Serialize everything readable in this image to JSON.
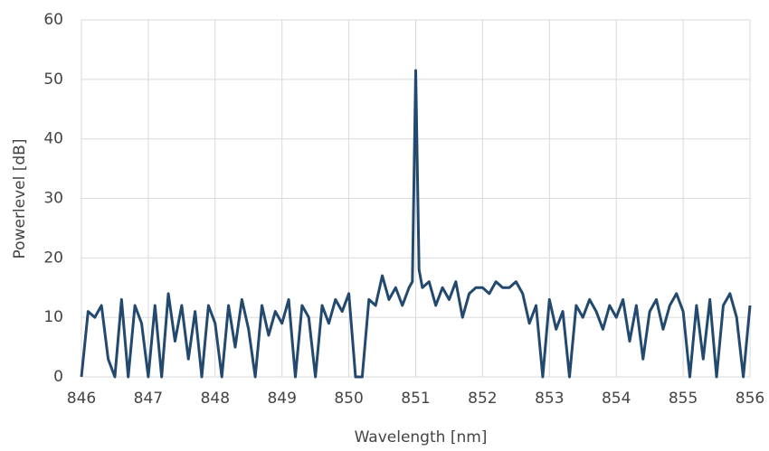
{
  "chart_data": {
    "type": "line",
    "x_label": "Wavelength [nm]",
    "y_label": "Powerlevel [dB]",
    "x": [
      846.0,
      846.1,
      846.2,
      846.3,
      846.4,
      846.5,
      846.6,
      846.7,
      846.8,
      846.9,
      847.0,
      847.1,
      847.2,
      847.3,
      847.4,
      847.5,
      847.6,
      847.7,
      847.8,
      847.9,
      848.0,
      848.1,
      848.2,
      848.3,
      848.4,
      848.5,
      848.6,
      848.7,
      848.8,
      848.9,
      849.0,
      849.1,
      849.2,
      849.3,
      849.4,
      849.5,
      849.6,
      849.7,
      849.8,
      849.9,
      850.0,
      850.1,
      850.2,
      850.3,
      850.4,
      850.5,
      850.6,
      850.7,
      850.8,
      850.9,
      850.95,
      851.0,
      851.05,
      851.1,
      851.2,
      851.3,
      851.4,
      851.5,
      851.6,
      851.7,
      851.8,
      851.9,
      852.0,
      852.1,
      852.2,
      852.3,
      852.4,
      852.5,
      852.6,
      852.7,
      852.8,
      852.9,
      853.0,
      853.1,
      853.2,
      853.3,
      853.4,
      853.5,
      853.6,
      853.7,
      853.8,
      853.9,
      854.0,
      854.1,
      854.2,
      854.3,
      854.4,
      854.5,
      854.6,
      854.7,
      854.8,
      854.9,
      855.0,
      855.1,
      855.2,
      855.3,
      855.4,
      855.5,
      855.6,
      855.7,
      855.8,
      855.9,
      856.0
    ],
    "series": [
      {
        "color": "#234a6e",
        "values": [
          0,
          11,
          10,
          12,
          3,
          0,
          13,
          0,
          12,
          9,
          0,
          12,
          0,
          14,
          6,
          12,
          3,
          11,
          0,
          12,
          9,
          0,
          12,
          5,
          13,
          8,
          0,
          12,
          7,
          11,
          9,
          13,
          0,
          12,
          10,
          0,
          12,
          9,
          13,
          11,
          14,
          0,
          0,
          13,
          12,
          17,
          13,
          15,
          12,
          15,
          16,
          51.5,
          18,
          15,
          16,
          12,
          15,
          13,
          16,
          10,
          14,
          15,
          15,
          14,
          16,
          15,
          15,
          16,
          14,
          9,
          12,
          0,
          13,
          8,
          11,
          0,
          12,
          10,
          13,
          11,
          8,
          12,
          10,
          13,
          6,
          12,
          3,
          11,
          13,
          8,
          12,
          14,
          11,
          0,
          12,
          3,
          13,
          0,
          12,
          14,
          10,
          0,
          12
        ]
      }
    ],
    "xlim": [
      846,
      856
    ],
    "ylim": [
      0,
      60
    ],
    "xticks": [
      846,
      847,
      848,
      849,
      850,
      851,
      852,
      853,
      854,
      855,
      856
    ],
    "yticks": [
      0,
      10,
      20,
      30,
      40,
      50,
      60
    ],
    "grid": true
  }
}
